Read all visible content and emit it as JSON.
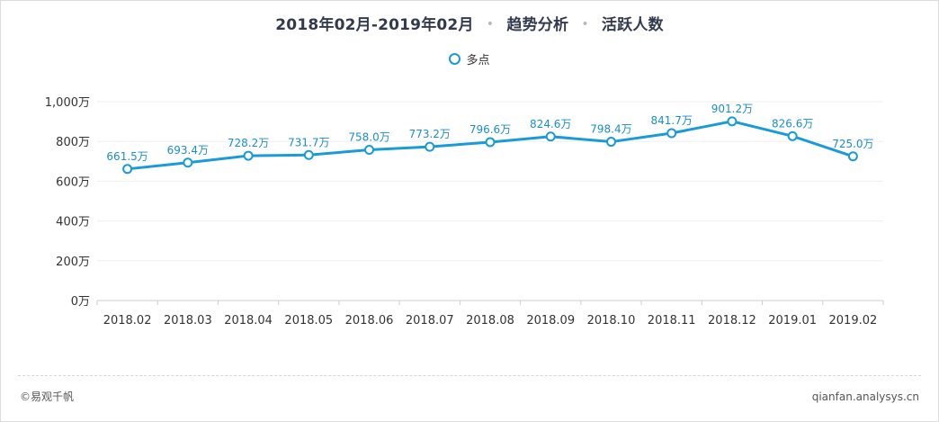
{
  "header": {
    "date_range": "2018年02月-2019年02月",
    "section": "趋势分析",
    "metric": "活跃人数",
    "separator": "•"
  },
  "legend": {
    "label": "多点"
  },
  "footer": {
    "brand": "©易观千帆",
    "site": "qianfan.analysys.cn"
  },
  "colors": {
    "series": "#1a9bd7",
    "label": "#1a8fcb",
    "grid": "#efefef"
  },
  "chart_data": {
    "type": "line",
    "categories": [
      "2018.02",
      "2018.03",
      "2018.04",
      "2018.05",
      "2018.06",
      "2018.07",
      "2018.08",
      "2018.09",
      "2018.10",
      "2018.11",
      "2018.12",
      "2019.01",
      "2019.02"
    ],
    "series": [
      {
        "name": "多点",
        "values": [
          661.5,
          693.4,
          728.2,
          731.7,
          758.0,
          773.2,
          796.6,
          824.6,
          798.4,
          841.7,
          901.2,
          826.6,
          725.0
        ],
        "labels": [
          "661.5万",
          "693.4万",
          "728.2万",
          "731.7万",
          "758.0万",
          "773.2万",
          "796.6万",
          "824.6万",
          "798.4万",
          "841.7万",
          "901.2万",
          "826.6万",
          "725.0万"
        ]
      }
    ],
    "yticks": [
      "0万",
      "200万",
      "400万",
      "600万",
      "800万",
      "1,000万"
    ],
    "ylim": [
      0,
      1000
    ],
    "grid": true,
    "legend_position": "top"
  }
}
